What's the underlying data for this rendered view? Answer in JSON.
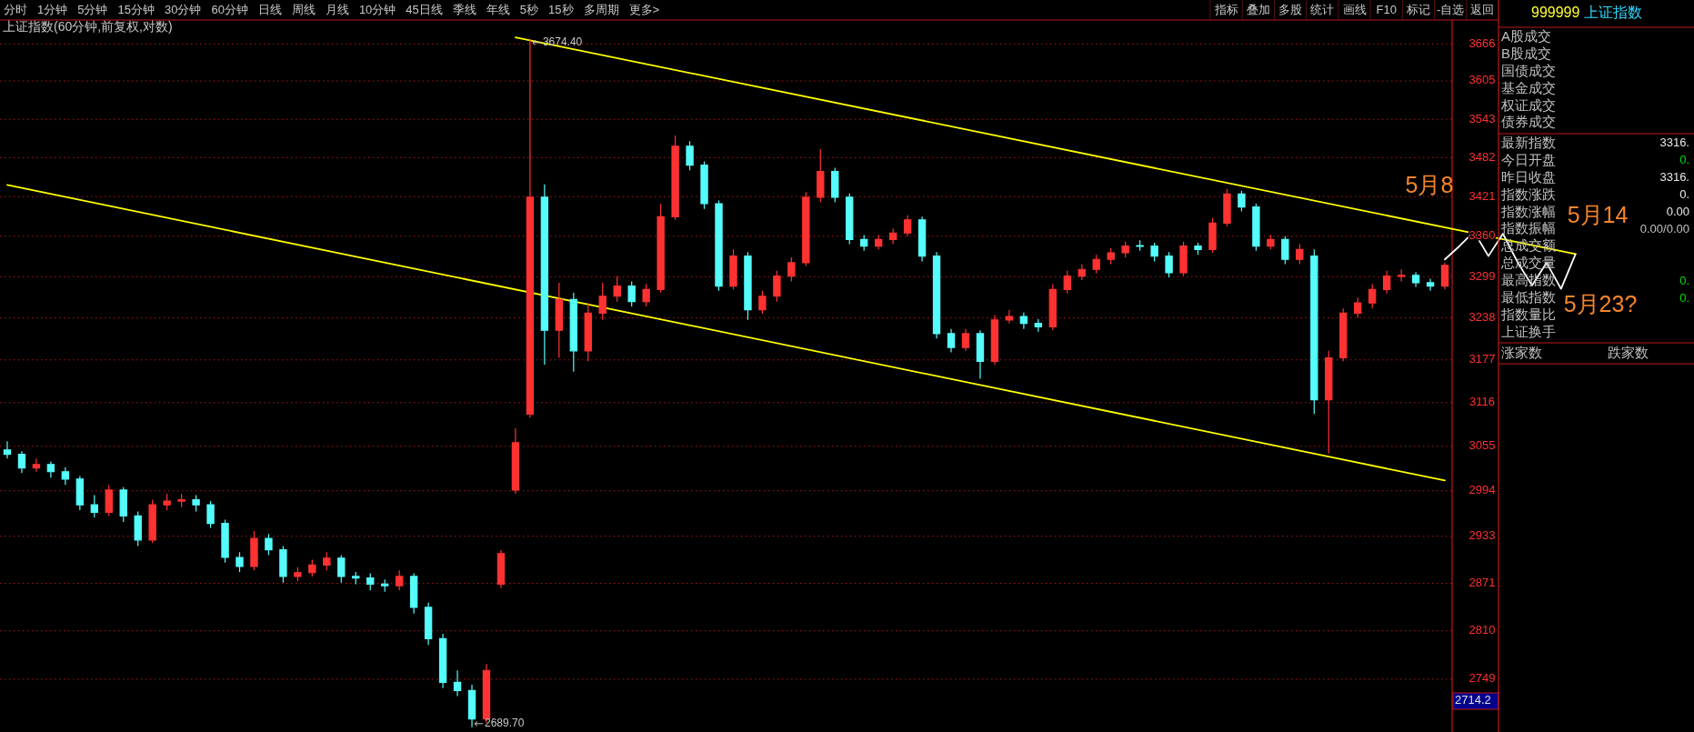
{
  "chart_data": [
    {
      "type": "candlestick",
      "title": "上证指数(60分钟,前复权,对数)",
      "categories": [
        null,
        null,
        null,
        null,
        null,
        null,
        null,
        null,
        null,
        null,
        null,
        null,
        null,
        null,
        null,
        null,
        null,
        null,
        null,
        null,
        null,
        null,
        null,
        null,
        null,
        null,
        null,
        null,
        null,
        null,
        null,
        null,
        null,
        null,
        null,
        null,
        null,
        null,
        null,
        null,
        null,
        null,
        null,
        null,
        null,
        null,
        null,
        null,
        null,
        null,
        null,
        null,
        null,
        null,
        null,
        null,
        null,
        null,
        null,
        null,
        null,
        null,
        null,
        null,
        null,
        null,
        null,
        null,
        null,
        null,
        null,
        null,
        null,
        null,
        null,
        null,
        null,
        null,
        null,
        null,
        null,
        null,
        null,
        null,
        null,
        null,
        null,
        null,
        null,
        null,
        null,
        null,
        null,
        null,
        null,
        null,
        null,
        null,
        null,
        null,
        null,
        null,
        null,
        null,
        null,
        null,
        null,
        null,
        null,
        null
      ],
      "ohlc": [
        [
          3050,
          3062,
          3038,
          3044
        ],
        [
          3044,
          3048,
          3018,
          3025
        ],
        [
          3025,
          3038,
          3020,
          3030
        ],
        [
          3030,
          3034,
          3012,
          3020
        ],
        [
          3020,
          3026,
          3002,
          3010
        ],
        [
          3010,
          3014,
          2968,
          2975
        ],
        [
          2975,
          2988,
          2958,
          2965
        ],
        [
          2965,
          3002,
          2960,
          2995
        ],
        [
          2995,
          2999,
          2952,
          2960
        ],
        [
          2960,
          2966,
          2920,
          2928
        ],
        [
          2928,
          2982,
          2924,
          2975
        ],
        [
          2975,
          2990,
          2968,
          2980
        ],
        [
          2980,
          2990,
          2972,
          2982
        ],
        [
          2982,
          2988,
          2966,
          2975
        ],
        [
          2975,
          2980,
          2944,
          2950
        ],
        [
          2950,
          2955,
          2898,
          2905
        ],
        [
          2905,
          2912,
          2886,
          2893
        ],
        [
          2893,
          2940,
          2888,
          2930
        ],
        [
          2930,
          2936,
          2908,
          2915
        ],
        [
          2915,
          2920,
          2872,
          2880
        ],
        [
          2880,
          2892,
          2874,
          2885
        ],
        [
          2885,
          2902,
          2880,
          2895
        ],
        [
          2895,
          2912,
          2888,
          2904
        ],
        [
          2904,
          2908,
          2872,
          2880
        ],
        [
          2880,
          2886,
          2870,
          2878
        ],
        [
          2878,
          2884,
          2862,
          2870
        ],
        [
          2870,
          2876,
          2860,
          2868
        ],
        [
          2868,
          2888,
          2862,
          2880
        ],
        [
          2880,
          2884,
          2832,
          2840
        ],
        [
          2840,
          2846,
          2792,
          2800
        ],
        [
          2800,
          2806,
          2738,
          2745
        ],
        [
          2745,
          2760,
          2728,
          2735
        ],
        [
          2735,
          2742,
          2689.7,
          2700
        ],
        [
          2700,
          2768,
          2695,
          2760
        ],
        [
          2870,
          2915,
          2865,
          2910
        ],
        [
          2995,
          3080,
          2990,
          3060
        ],
        [
          3100,
          3674.4,
          3095,
          3420
        ],
        [
          3420,
          3440,
          3170,
          3220
        ],
        [
          3220,
          3290,
          3180,
          3265
        ],
        [
          3265,
          3275,
          3160,
          3190
        ],
        [
          3190,
          3260,
          3175,
          3245
        ],
        [
          3245,
          3290,
          3235,
          3270
        ],
        [
          3270,
          3300,
          3262,
          3285
        ],
        [
          3285,
          3292,
          3255,
          3262
        ],
        [
          3262,
          3288,
          3255,
          3280
        ],
        [
          3280,
          3410,
          3275,
          3390
        ],
        [
          3390,
          3517,
          3385,
          3500
        ],
        [
          3500,
          3508,
          3462,
          3470
        ],
        [
          3470,
          3476,
          3402,
          3410
        ],
        [
          3410,
          3415,
          3278,
          3285
        ],
        [
          3285,
          3340,
          3280,
          3330
        ],
        [
          3330,
          3336,
          3235,
          3250
        ],
        [
          3250,
          3278,
          3244,
          3270
        ],
        [
          3270,
          3308,
          3262,
          3300
        ],
        [
          3300,
          3328,
          3292,
          3320
        ],
        [
          3320,
          3428,
          3315,
          3420
        ],
        [
          3420,
          3495,
          3412,
          3460
        ],
        [
          3460,
          3466,
          3412,
          3420
        ],
        [
          3420,
          3426,
          3348,
          3355
        ],
        [
          3355,
          3362,
          3338,
          3345
        ],
        [
          3345,
          3362,
          3340,
          3355
        ],
        [
          3355,
          3372,
          3348,
          3365
        ],
        [
          3365,
          3392,
          3360,
          3385
        ],
        [
          3385,
          3390,
          3322,
          3330
        ],
        [
          3330,
          3336,
          3208,
          3215
        ],
        [
          3215,
          3222,
          3188,
          3195
        ],
        [
          3195,
          3222,
          3190,
          3215
        ],
        [
          3215,
          3220,
          3150,
          3175
        ],
        [
          3175,
          3242,
          3170,
          3235
        ],
        [
          3235,
          3250,
          3230,
          3240
        ],
        [
          3240,
          3246,
          3222,
          3230
        ],
        [
          3230,
          3236,
          3218,
          3225
        ],
        [
          3225,
          3288,
          3220,
          3280
        ],
        [
          3280,
          3308,
          3274,
          3300
        ],
        [
          3300,
          3318,
          3294,
          3310
        ],
        [
          3310,
          3332,
          3304,
          3325
        ],
        [
          3325,
          3342,
          3318,
          3335
        ],
        [
          3335,
          3352,
          3328,
          3345
        ],
        [
          3346,
          3354,
          3338,
          3345
        ],
        [
          3345,
          3350,
          3322,
          3330
        ],
        [
          3330,
          3336,
          3298,
          3305
        ],
        [
          3305,
          3352,
          3300,
          3345
        ],
        [
          3345,
          3350,
          3332,
          3340
        ],
        [
          3340,
          3388,
          3335,
          3380
        ],
        [
          3380,
          3433,
          3375,
          3425
        ],
        [
          3425,
          3430,
          3398,
          3405
        ],
        [
          3405,
          3410,
          3338,
          3345
        ],
        [
          3345,
          3362,
          3340,
          3355
        ],
        [
          3355,
          3360,
          3318,
          3325
        ],
        [
          3325,
          3348,
          3318,
          3340
        ],
        [
          3330,
          3340,
          3100,
          3120
        ],
        [
          3120,
          3190,
          3045,
          3180
        ],
        [
          3180,
          3252,
          3175,
          3245
        ],
        [
          3245,
          3268,
          3238,
          3260
        ],
        [
          3260,
          3288,
          3252,
          3280
        ],
        [
          3280,
          3308,
          3274,
          3300
        ],
        [
          3300,
          3310,
          3292,
          3301
        ],
        [
          3301,
          3306,
          3284,
          3290
        ],
        [
          3290,
          3296,
          3278,
          3285
        ],
        [
          3285,
          3320,
          3280,
          3316
        ],
        null,
        null,
        null,
        null,
        null,
        null,
        null,
        null,
        null,
        null
      ],
      "colors": [
        "#54fcfc",
        "#54fcfc",
        "#ff3232",
        "#54fcfc",
        "#54fcfc",
        "#54fcfc",
        "#54fcfc",
        "#ff3232",
        "#54fcfc",
        "#54fcfc",
        "#ff3232",
        "#ff3232",
        "#ff3232",
        "#54fcfc",
        "#54fcfc",
        "#54fcfc",
        "#54fcfc",
        "#ff3232",
        "#54fcfc",
        "#54fcfc",
        "#ff3232",
        "#ff3232",
        "#ff3232",
        "#54fcfc",
        "#54fcfc",
        "#54fcfc",
        "#54fcfc",
        "#ff3232",
        "#54fcfc",
        "#54fcfc",
        "#54fcfc",
        "#54fcfc",
        "#54fcfc",
        "#ff3232",
        "#ff3232",
        "#ff3232",
        "#ff3232",
        "#54fcfc",
        "#ff3232",
        "#54fcfc",
        "#ff3232",
        "#ff3232",
        "#ff3232",
        "#54fcfc",
        "#ff3232",
        "#ff3232",
        "#ff3232",
        "#54fcfc",
        "#54fcfc",
        "#54fcfc",
        "#ff3232",
        "#54fcfc",
        "#ff3232",
        "#ff3232",
        "#ff3232",
        "#ff3232",
        "#ff3232",
        "#54fcfc",
        "#54fcfc",
        "#54fcfc",
        "#ff3232",
        "#ff3232",
        "#ff3232",
        "#54fcfc",
        "#54fcfc",
        "#54fcfc",
        "#ff3232",
        "#54fcfc",
        "#ff3232",
        "#ff3232",
        "#54fcfc",
        "#54fcfc",
        "#ff3232",
        "#ff3232",
        "#ff3232",
        "#ff3232",
        "#ff3232",
        "#ff3232",
        "#54fcfc",
        "#54fcfc",
        "#54fcfc",
        "#ff3232",
        "#54fcfc",
        "#ff3232",
        "#ff3232",
        "#54fcfc",
        "#54fcfc",
        "#ff3232",
        "#54fcfc",
        "#ff3232",
        "#54fcfc",
        "#ff3232",
        "#ff3232",
        "#ff3232",
        "#ff3232",
        "#ff3232",
        "#ff3232",
        "#54fcfc",
        "#54fcfc",
        "#ff3232",
        null,
        null,
        null,
        null,
        null,
        null,
        null,
        null,
        null,
        null
      ],
      "series": [
        {
          "type": "line",
          "color": "#ffff00",
          "values": [
            null,
            null,
            null,
            null,
            null,
            null,
            null,
            null,
            null,
            null,
            null,
            null,
            null,
            null,
            null,
            null,
            null,
            null,
            null,
            null,
            null,
            null,
            null,
            null,
            null,
            null,
            null,
            null,
            null,
            null,
            null,
            null,
            null,
            null,
            null,
            3677,
            null,
            null,
            null,
            null,
            null,
            null,
            null,
            null,
            null,
            null,
            null,
            null,
            null,
            null,
            null,
            null,
            null,
            null,
            null,
            null,
            null,
            null,
            null,
            null,
            null,
            null,
            null,
            null,
            null,
            null,
            null,
            null,
            null,
            null,
            null,
            null,
            null,
            null,
            null,
            null,
            null,
            null,
            null,
            null,
            null,
            null,
            null,
            null,
            null,
            null,
            null,
            null,
            null,
            null,
            null,
            null,
            null,
            null,
            null,
            null,
            null,
            null,
            null,
            null,
            null,
            null,
            null,
            null,
            null,
            null,
            null,
            null,
            3333,
            null
          ]
        },
        {
          "type": "line",
          "color": "#ffff00",
          "values": [
            3439,
            null,
            null,
            null,
            null,
            null,
            null,
            null,
            null,
            null,
            null,
            null,
            null,
            null,
            null,
            null,
            null,
            null,
            null,
            null,
            null,
            null,
            null,
            null,
            null,
            null,
            null,
            null,
            null,
            null,
            null,
            null,
            null,
            null,
            null,
            null,
            null,
            null,
            null,
            null,
            null,
            null,
            null,
            null,
            null,
            null,
            null,
            null,
            null,
            null,
            null,
            null,
            null,
            null,
            null,
            null,
            null,
            null,
            null,
            null,
            null,
            null,
            null,
            null,
            null,
            null,
            null,
            null,
            null,
            null,
            null,
            null,
            null,
            null,
            null,
            null,
            null,
            null,
            null,
            null,
            null,
            null,
            null,
            null,
            null,
            null,
            null,
            null,
            null,
            null,
            null,
            null,
            null,
            null,
            null,
            null,
            null,
            null,
            null,
            3008,
            null,
            null,
            null,
            null,
            null,
            null,
            null,
            null,
            null,
            null
          ]
        },
        {
          "type": "line",
          "color": "#ffffff",
          "values": [
            null,
            null,
            null,
            null,
            null,
            null,
            null,
            null,
            null,
            null,
            null,
            null,
            null,
            null,
            null,
            null,
            null,
            null,
            null,
            null,
            null,
            null,
            null,
            null,
            null,
            null,
            null,
            null,
            null,
            null,
            null,
            null,
            null,
            null,
            null,
            null,
            null,
            null,
            null,
            null,
            null,
            null,
            null,
            null,
            null,
            null,
            null,
            null,
            null,
            null,
            null,
            null,
            null,
            null,
            null,
            null,
            null,
            null,
            null,
            null,
            null,
            null,
            null,
            null,
            null,
            null,
            null,
            null,
            null,
            null,
            null,
            null,
            null,
            null,
            null,
            null,
            null,
            null,
            null,
            null,
            null,
            null,
            null,
            null,
            null,
            null,
            null,
            null,
            null,
            null,
            null,
            null,
            null,
            null,
            null,
            null,
            null,
            null,
            null,
            3325,
            3345,
            3367,
            3330,
            3364,
            3321,
            3286,
            3320,
            3281,
            3333,
            null
          ]
        }
      ],
      "log": true,
      "ylim": [
        2684,
        3706
      ],
      "yticks": [
        2749,
        2810,
        2871,
        2933,
        2994,
        3055,
        3116,
        3177,
        3238,
        3299,
        3360,
        3421,
        3482,
        3543,
        3605,
        3666
      ],
      "grid": "y",
      "tick_labels": "y",
      "annotations": [
        "3674.40",
        "2689.70",
        "2714.2",
        "5月8",
        "5月14",
        "5月23?"
      ]
    },
    {
      "type": "other",
      "categories": [
        "分时",
        "1分钟",
        "5分钟",
        "15分钟",
        "30分钟",
        "60分钟",
        "日线",
        "周线",
        "月线",
        "10分钟",
        "45日线",
        "季线",
        "年线",
        "5秒",
        "15秒",
        "多周期",
        "更多>"
      ],
      "annotations": [
        "指标",
        "叠加",
        "多股",
        "统计",
        "画线",
        "F10",
        "标记",
        "-自选",
        "返回"
      ]
    },
    {
      "type": "other",
      "title": "999999 上证指数",
      "categories": [
        "A股成交",
        "B股成交",
        "国债成交",
        "基金成交",
        "权证成交",
        "债券成交",
        "最新指数",
        "今日开盘",
        "昨日收盘",
        "指数涨跌",
        "指数涨幅",
        "指数振幅",
        "总成交额",
        "总成交量",
        "最高指数",
        "最低指数",
        "指数量比",
        "上证换手"
      ],
      "value_labels": [
        null,
        null,
        null,
        null,
        null,
        null,
        "3316.",
        "0.",
        "3316.",
        "0.",
        "0.00",
        "0.00/0.00",
        null,
        null,
        "0.",
        "0.",
        null,
        null
      ],
      "colors": [
        null,
        null,
        null,
        null,
        null,
        null,
        "#e8e8e8",
        "#00e000",
        "#e8e8e8",
        "#e8e8e8",
        "#e8e8e8",
        "#c0c0c0",
        null,
        null,
        "#00e000",
        "#00e000",
        null,
        null
      ],
      "annotations": [
        "涨家数",
        "跌家数"
      ]
    }
  ]
}
